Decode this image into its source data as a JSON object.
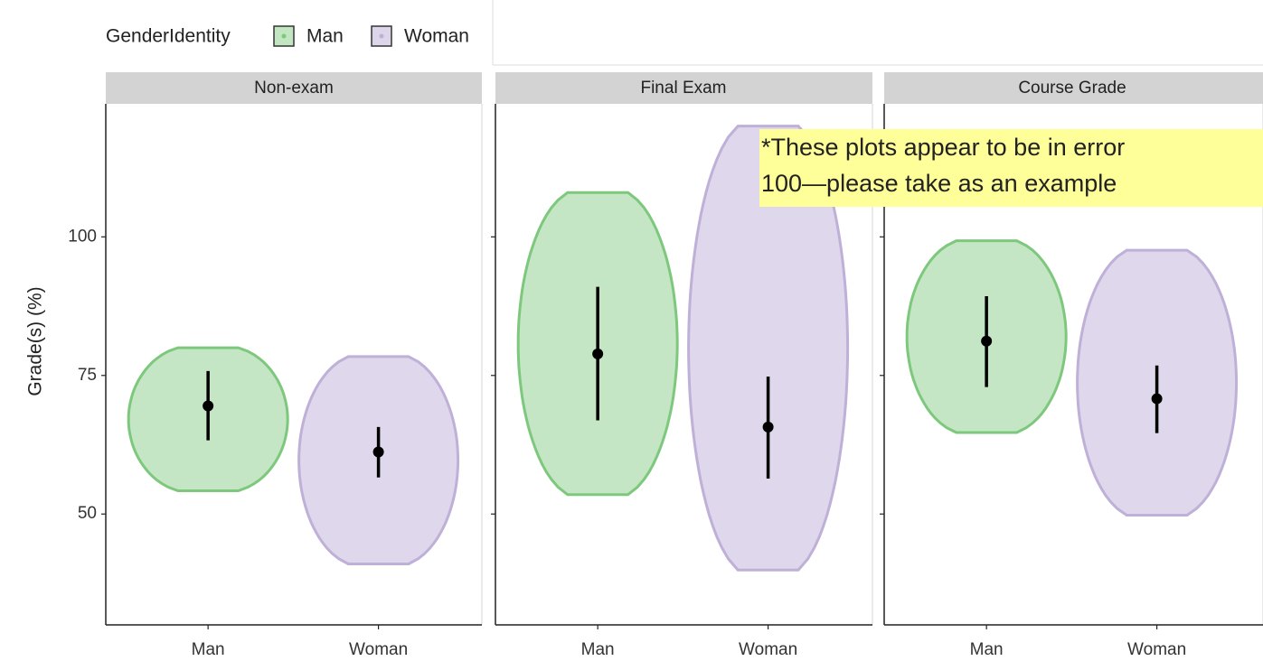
{
  "chart_data": {
    "type": "violin",
    "legend_title": "GenderIdentity",
    "ylabel": "Grade(s) (%)",
    "ylim": [
      30,
      124
    ],
    "yticks": [
      50,
      75,
      100
    ],
    "annotation": [
      "*These plots appear to be in error",
      "100—please take as an example"
    ],
    "series": [
      {
        "name": "Man",
        "color": "#c2e5c2",
        "edge": "#7dc87d"
      },
      {
        "name": "Woman",
        "color": "#ddd5ea",
        "edge": "#bfb0d8"
      }
    ],
    "panels": [
      {
        "title": "Non-exam",
        "categories": [
          "Man",
          "Woman"
        ],
        "means": [
          69.5,
          61.2
        ],
        "lower": [
          63.3,
          56.6
        ],
        "upper": [
          75.8,
          65.7
        ],
        "min": [
          54.2,
          41
        ],
        "max": [
          80,
          78.4
        ]
      },
      {
        "title": "Final Exam",
        "categories": [
          "Man",
          "Woman"
        ],
        "means": [
          78.9,
          65.7
        ],
        "lower": [
          66.9,
          56.4
        ],
        "upper": [
          91,
          74.8
        ],
        "min": [
          53.5,
          39.9
        ],
        "max": [
          108,
          120
        ]
      },
      {
        "title": "Course Grade",
        "categories": [
          "Man",
          "Woman"
        ],
        "means": [
          81.2,
          70.8
        ],
        "lower": [
          72.9,
          64.6
        ],
        "upper": [
          89.3,
          76.8
        ],
        "min": [
          64.7,
          49.8
        ],
        "max": [
          99.3,
          97.6
        ]
      }
    ]
  }
}
